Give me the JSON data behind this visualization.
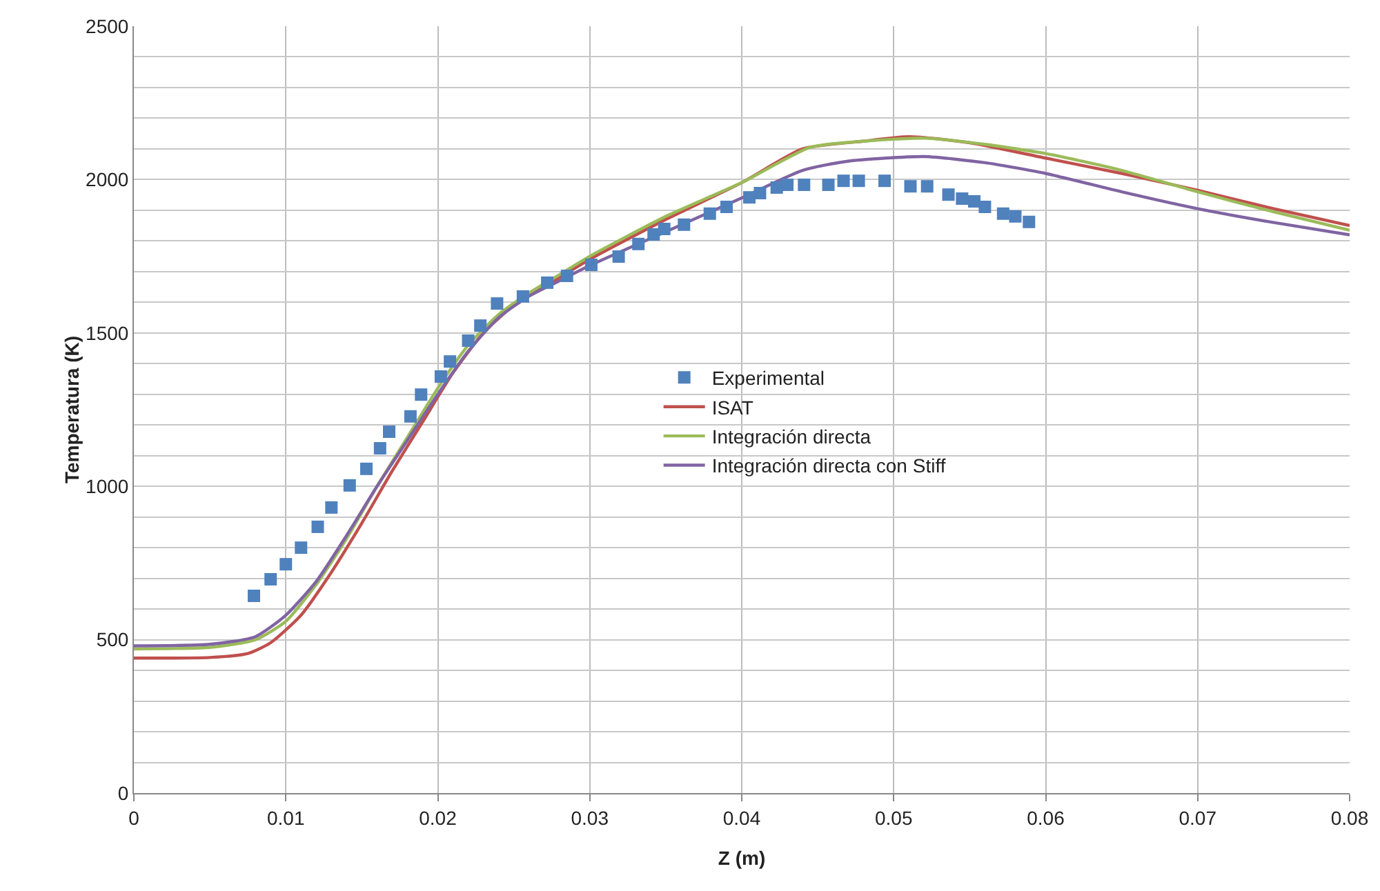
{
  "chart_data": {
    "type": "line",
    "xlabel": "Z (m)",
    "ylabel": "Temperatura (K)",
    "xlim": [
      0,
      0.08
    ],
    "xticks": [
      0,
      0.01,
      0.02,
      0.03,
      0.04,
      0.05,
      0.06,
      0.07,
      0.08
    ],
    "ylim": [
      0,
      2500
    ],
    "yticks": [
      0,
      {
        "value": 100,
        "label": null
      },
      {
        "value": 200,
        "label": null
      },
      {
        "value": 300,
        "label": null
      },
      {
        "value": 400,
        "label": null
      },
      500,
      {
        "value": 600,
        "label": null
      },
      {
        "value": 700,
        "label": null
      },
      {
        "value": 800,
        "label": null
      },
      {
        "value": 900,
        "label": null
      },
      1000,
      {
        "value": 1100,
        "label": null
      },
      {
        "value": 1200,
        "label": null
      },
      {
        "value": 1300,
        "label": null
      },
      {
        "value": 1400,
        "label": null
      },
      1500,
      {
        "value": 1600,
        "label": null
      },
      {
        "value": 1700,
        "label": null
      },
      {
        "value": 1800,
        "label": null
      },
      {
        "value": 1900,
        "label": null
      },
      2000,
      {
        "value": 2100,
        "label": null
      },
      {
        "value": 2200,
        "label": null
      },
      {
        "value": 2300,
        "label": null
      },
      {
        "value": 2400,
        "label": null
      },
      2500
    ],
    "grid": true,
    "legend": "center",
    "series": [
      {
        "name": "Experimental",
        "type": "scatter",
        "marker": "square",
        "color": "#4f81bd",
        "x": [
          0.0079,
          0.009,
          0.01,
          0.011,
          0.0121,
          0.013,
          0.0142,
          0.0153,
          0.0162,
          0.0168,
          0.0182,
          0.0189,
          0.0202,
          0.0208,
          0.022,
          0.0228,
          0.0239,
          0.0256,
          0.0272,
          0.0285,
          0.0301,
          0.0319,
          0.0332,
          0.0342,
          0.0349,
          0.0362,
          0.0379,
          0.039,
          0.0405,
          0.0412,
          0.0423,
          0.043,
          0.0441,
          0.0457,
          0.0467,
          0.0477,
          0.0494,
          0.0511,
          0.0522,
          0.0536,
          0.0545,
          0.0553,
          0.056,
          0.0572,
          0.058,
          0.0589
        ],
        "values": [
          643,
          697,
          746,
          800,
          868,
          931,
          1003,
          1057,
          1124,
          1178,
          1228,
          1299,
          1358,
          1407,
          1475,
          1524,
          1596,
          1619,
          1664,
          1686,
          1722,
          1749,
          1790,
          1821,
          1839,
          1853,
          1889,
          1911,
          1942,
          1956,
          1974,
          1983,
          1983,
          1983,
          1996,
          1996,
          1996,
          1978,
          1978,
          1951,
          1938,
          1929,
          1911,
          1889,
          1880,
          1862
        ]
      },
      {
        "name": "ISAT",
        "marker": "none",
        "color": "#c0504d",
        "x": [
          0,
          0.005,
          0.0075,
          0.009,
          0.011,
          0.013,
          0.015,
          0.017,
          0.019,
          0.021,
          0.023,
          0.025,
          0.027,
          0.03,
          0.035,
          0.04,
          0.044,
          0.048,
          0.051,
          0.055,
          0.06,
          0.065,
          0.07,
          0.075,
          0.08
        ],
        "values": [
          440,
          442,
          455,
          490,
          580,
          720,
          880,
          1050,
          1210,
          1370,
          1500,
          1590,
          1650,
          1740,
          1870,
          1990,
          2100,
          2125,
          2140,
          2120,
          2070,
          2020,
          1965,
          1905,
          1850
        ]
      },
      {
        "name": "Integración directa",
        "marker": "none",
        "color": "#9bbb59",
        "x": [
          0,
          0.005,
          0.008,
          0.01,
          0.012,
          0.014,
          0.016,
          0.018,
          0.02,
          0.022,
          0.024,
          0.026,
          0.028,
          0.03,
          0.035,
          0.04,
          0.0445,
          0.048,
          0.052,
          0.056,
          0.06,
          0.065,
          0.07,
          0.075,
          0.08
        ],
        "values": [
          470,
          475,
          500,
          560,
          680,
          830,
          1000,
          1160,
          1320,
          1460,
          1560,
          1630,
          1690,
          1750,
          1880,
          1990,
          2105,
          2125,
          2135,
          2115,
          2085,
          2030,
          1960,
          1895,
          1835
        ]
      },
      {
        "name": "Integración directa con Stiff",
        "marker": "none",
        "color": "#8064a2",
        "x": [
          0,
          0.005,
          0.008,
          0.01,
          0.012,
          0.014,
          0.016,
          0.018,
          0.02,
          0.022,
          0.024,
          0.026,
          0.028,
          0.03,
          0.035,
          0.04,
          0.044,
          0.047,
          0.052,
          0.056,
          0.06,
          0.065,
          0.07,
          0.075,
          0.08
        ],
        "values": [
          480,
          485,
          510,
          580,
          690,
          840,
          1000,
          1150,
          1300,
          1440,
          1550,
          1620,
          1670,
          1720,
          1830,
          1940,
          2030,
          2060,
          2075,
          2055,
          2020,
          1960,
          1905,
          1860,
          1820
        ]
      }
    ]
  }
}
